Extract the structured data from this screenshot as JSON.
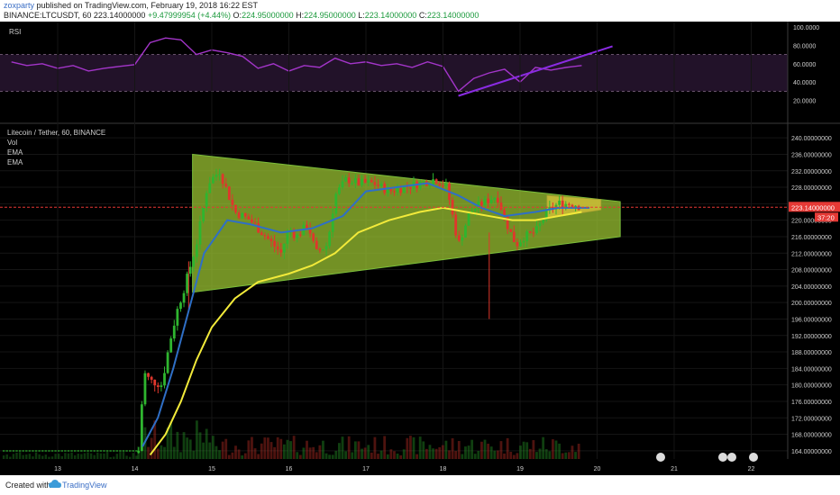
{
  "header": {
    "author": "zoxparty",
    "published_text": " published on TradingView.com, February 19, 2018 16:22 EST",
    "symbol_line": "BINANCE:LTCUSDT, 60",
    "last": "223.14000000",
    "change": "+9.47999954 (+4.44%)",
    "o_label": "O:",
    "o_value": "224.95000000",
    "h_label": "H:",
    "h_value": "224.95000000",
    "l_label": "L:",
    "l_value": "223.14000000",
    "c_label": "C:",
    "c_value": "223.14000000"
  },
  "rsi_panel": {
    "label": "RSI",
    "ticks": [
      "100.0000",
      "80.0000",
      "60.0000",
      "40.0000",
      "20.0000"
    ]
  },
  "price_panel": {
    "title": "Litecoin / Tether, 60, BINANCE",
    "indicators": [
      "Vol",
      "EMA",
      "EMA"
    ],
    "last_price_tag": "223.14000000",
    "countdown_tag": "37:20",
    "ticks": [
      "240.00000000",
      "236.00000000",
      "232.00000000",
      "228.00000000",
      "224.00000000",
      "220.00000000",
      "216.00000000",
      "212.00000000",
      "208.00000000",
      "204.00000000",
      "200.00000000",
      "196.00000000",
      "192.00000000",
      "188.00000000",
      "184.00000000",
      "180.00000000",
      "176.00000000",
      "172.00000000",
      "168.00000000",
      "164.00000000"
    ]
  },
  "time_axis": {
    "labels": [
      "13",
      "14",
      "15",
      "16",
      "17",
      "18",
      "19",
      "20",
      "21",
      "22"
    ]
  },
  "footer": {
    "created_with": "Created with",
    "brand": "TradingView"
  },
  "colors": {
    "up": "#2fb52f",
    "down": "#e0362c",
    "rsi_line": "#a335c9",
    "ema_fast": "#2f6fc6",
    "ema_slow": "#f2ea3a",
    "triangle_fill": "#9fc933",
    "last_price": "#e53935"
  },
  "chart_data": [
    {
      "type": "line",
      "name": "RSI",
      "x_day": [
        12.4,
        12.6,
        12.8,
        13.0,
        13.2,
        13.4,
        13.6,
        13.8,
        14.0,
        14.2,
        14.4,
        14.6,
        14.8,
        15.0,
        15.2,
        15.4,
        15.6,
        15.8,
        16.0,
        16.2,
        16.4,
        16.6,
        16.8,
        17.0,
        17.2,
        17.4,
        17.6,
        17.8,
        18.0,
        18.2,
        18.4,
        18.6,
        18.8,
        19.0,
        19.2,
        19.4,
        19.6,
        19.8
      ],
      "values": [
        62,
        58,
        60,
        55,
        58,
        52,
        55,
        57,
        59,
        83,
        88,
        86,
        70,
        75,
        72,
        68,
        55,
        60,
        52,
        58,
        56,
        66,
        60,
        62,
        58,
        60,
        56,
        62,
        57,
        30,
        44,
        50,
        54,
        40,
        56,
        53,
        56,
        58
      ],
      "ylim": [
        0,
        100
      ],
      "trendline": {
        "x": [
          18.2,
          20.2
        ],
        "y": [
          25,
          79
        ]
      }
    },
    {
      "type": "candlestick",
      "name": "Litecoin / Tether, 60, BINANCE",
      "ylim": [
        162,
        242
      ],
      "x_range": [
        12.3,
        20.6
      ],
      "last_price": 223.14,
      "ema_fast": {
        "x": [
          14.1,
          14.3,
          14.5,
          14.7,
          14.9,
          15.2,
          15.5,
          15.9,
          16.3,
          16.7,
          17.0,
          17.4,
          17.8,
          18.2,
          18.5,
          18.8,
          19.2,
          19.5,
          19.9
        ],
        "y": [
          165,
          172,
          184,
          198,
          212,
          220,
          219,
          217,
          218,
          221,
          227,
          228,
          229,
          226,
          223,
          221,
          222,
          223,
          223
        ]
      },
      "ema_slow": {
        "x": [
          14.2,
          14.4,
          14.6,
          14.8,
          15.0,
          15.3,
          15.6,
          16.0,
          16.3,
          16.6,
          16.9,
          17.3,
          17.7,
          18.0,
          18.3,
          18.6,
          18.9,
          19.2,
          19.5,
          19.8
        ],
        "y": [
          163,
          168,
          176,
          186,
          194,
          201,
          205,
          207,
          209,
          212,
          217,
          220,
          222,
          223,
          222,
          221,
          220,
          220,
          221,
          222
        ]
      },
      "triangle": {
        "x": [
          14.75,
          20.3,
          14.75
        ],
        "y": [
          236,
          224.5,
          202.5
        ],
        "x2": 20.3,
        "y2": 216
      },
      "small_triangle": {
        "x": [
          19.35,
          20.05
        ],
        "y_top": [
          226,
          225
        ],
        "y_bottom": [
          220.5,
          222.5
        ]
      }
    }
  ]
}
